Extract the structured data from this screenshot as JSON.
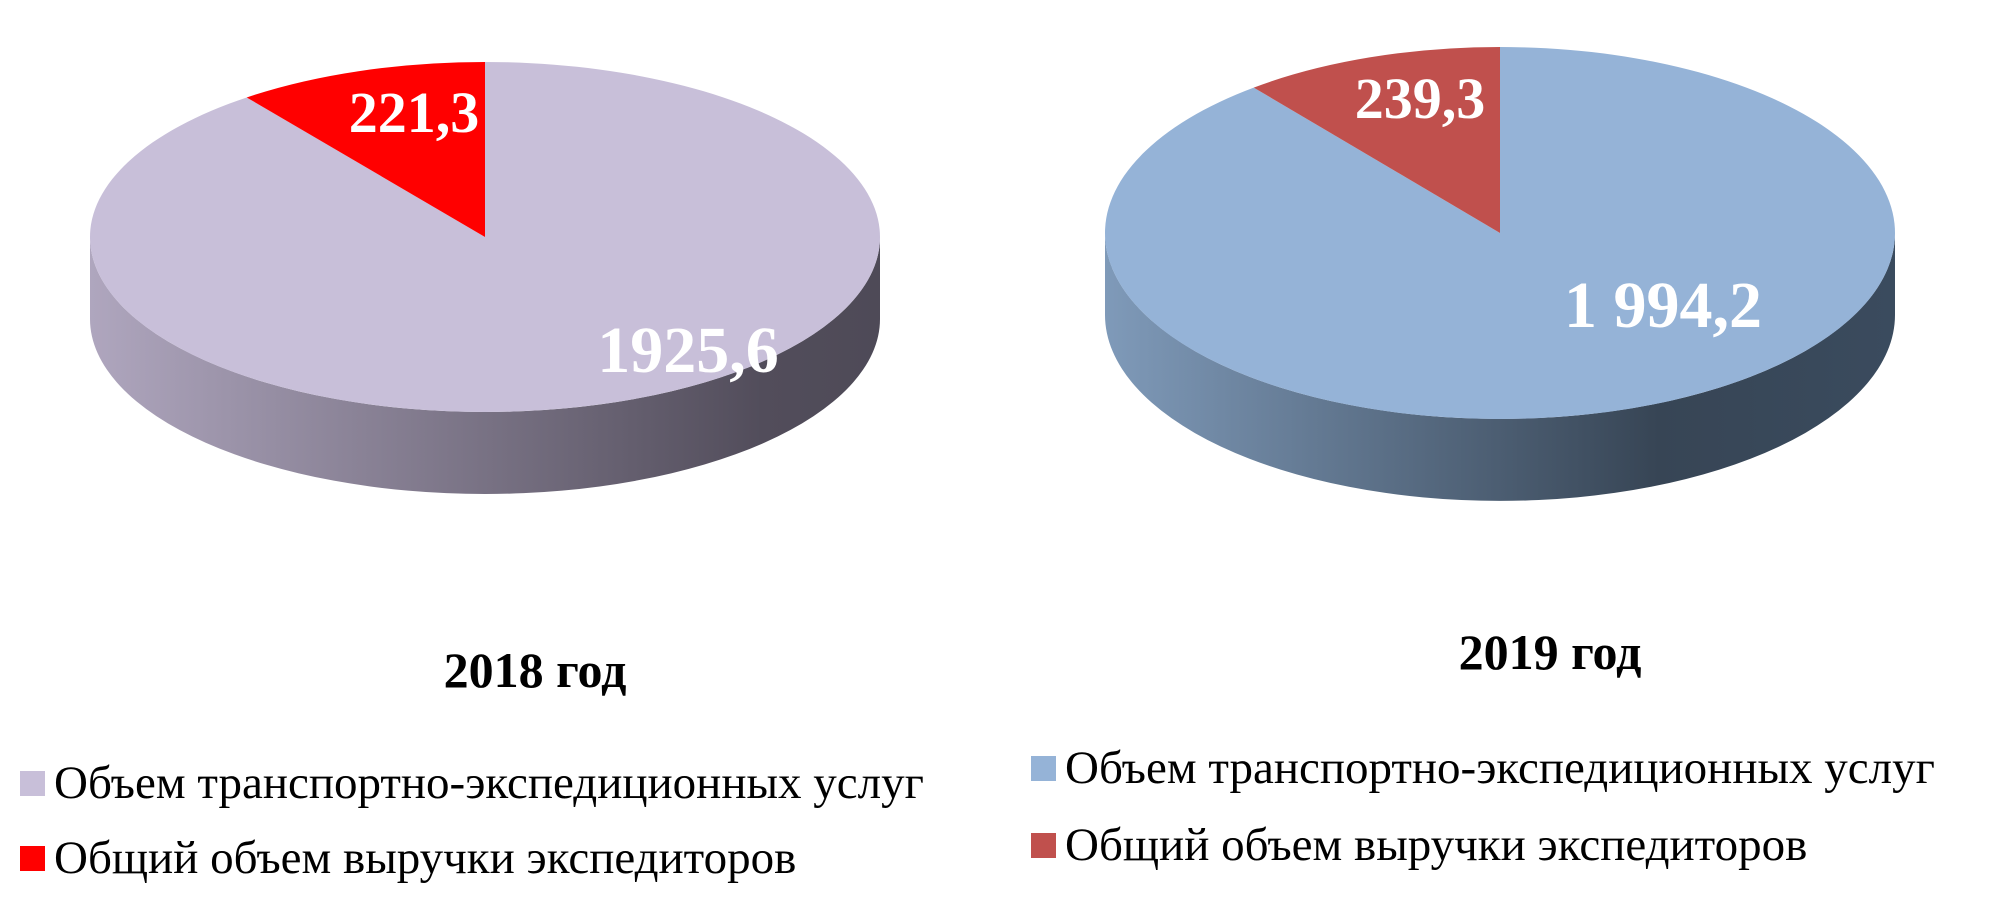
{
  "chart_data": [
    {
      "type": "pie",
      "title": "2018 год",
      "series": [
        {
          "name": "Объем транспортно-экспедиционных услуг",
          "value": 1925.6,
          "label": "1925,6",
          "color": "#C8BFD9"
        },
        {
          "name": "Общий объем выручки экспедиторов",
          "value": 221.3,
          "label": "221,3",
          "color": "#FF0000"
        }
      ],
      "legend": "bottom-left",
      "style": "3d"
    },
    {
      "type": "pie",
      "title": "2019 год",
      "series": [
        {
          "name": "Объем транспортно-экспедиционных услуг",
          "value": 1994.2,
          "label": "1 994,2",
          "color": "#95B3D7"
        },
        {
          "name": "Общий объем выручки экспедиторов",
          "value": 239.3,
          "label": "239,3",
          "color": "#C0504D"
        }
      ],
      "legend": "bottom-right",
      "style": "3d"
    }
  ]
}
